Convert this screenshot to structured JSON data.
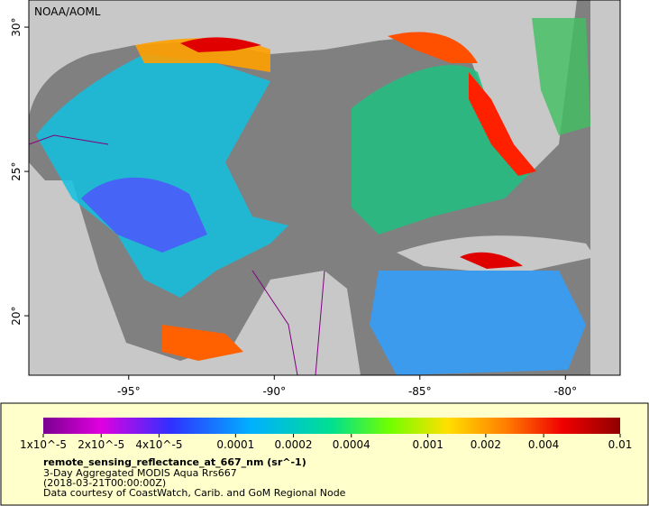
{
  "map": {
    "credit": "NOAA/AOML",
    "lon_range": [
      -98.43,
      -78.12
    ],
    "lat_range": [
      17.94,
      30.94
    ],
    "lon_ticks": [
      {
        "value": -95,
        "label": "-95°"
      },
      {
        "value": -90,
        "label": "-90°"
      },
      {
        "value": -85,
        "label": "-85°"
      },
      {
        "value": -80,
        "label": "-80°"
      }
    ],
    "lat_ticks": [
      {
        "value": 30,
        "label": "30°"
      },
      {
        "value": 25,
        "label": "25°"
      },
      {
        "value": 20,
        "label": "20°"
      }
    ]
  },
  "legend": {
    "range": [
      1e-05,
      0.01
    ],
    "log_scale": true,
    "ticks": [
      {
        "value": 1e-05,
        "label": "1x10^-5"
      },
      {
        "value": 2e-05,
        "label": "2x10^-5"
      },
      {
        "value": 4e-05,
        "label": "4x10^-5"
      },
      0.0001,
      0.0002,
      0.0004,
      0.001,
      0.002,
      0.004,
      0.01
    ],
    "title": "remote_sensing_reflectance_at_667_nm (sr^-1)",
    "lines": [
      "3-Day Aggregated MODIS Aqua Rrs667",
      "(2018-03-21T00:00:00Z)",
      "Data courtesy of CoastWatch, Carib. and GoM Regional Node"
    ]
  }
}
